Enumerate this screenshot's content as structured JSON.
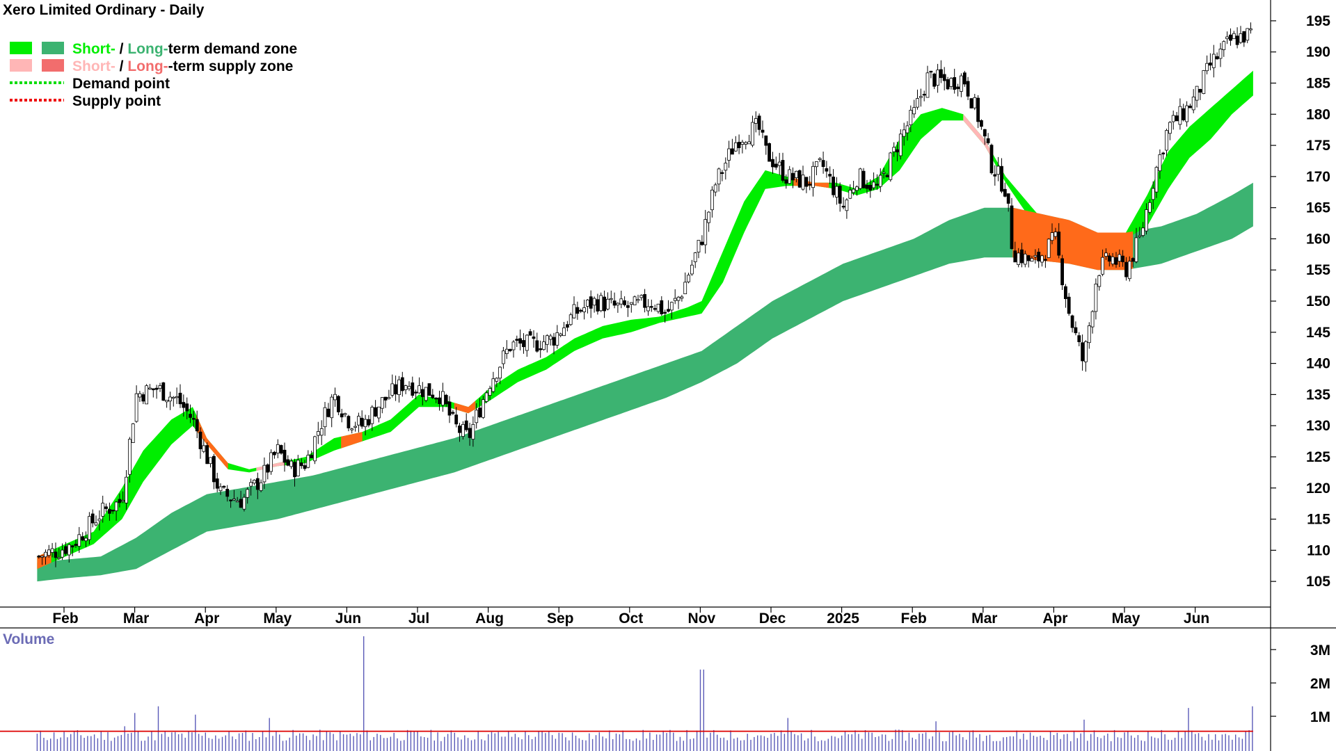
{
  "chart_data": {
    "type": "candlestick",
    "title": "Xero Limited Ordinary - Daily",
    "legend": {
      "placement": "top-left",
      "items": [
        {
          "parts": [
            {
              "text": "Short-",
              "color": "#00ee00"
            },
            {
              "text": " / ",
              "color": "#000000"
            },
            {
              "text": "Long-",
              "color": "#3cb371"
            },
            {
              "text": "term demand zone",
              "color": "#000000"
            }
          ],
          "swatches": [
            "#00ee00",
            "#3cb371"
          ],
          "kind": "box"
        },
        {
          "parts": [
            {
              "text": "Short-",
              "color": "#ffb6b6"
            },
            {
              "text": " / ",
              "color": "#000000"
            },
            {
              "text": "Long-",
              "color": "#f26d6d"
            },
            {
              "text": "-term supply zone",
              "color": "#000000"
            }
          ],
          "swatches": [
            "#ffb6b6",
            "#f26d6d"
          ],
          "kind": "box"
        },
        {
          "parts": [
            {
              "text": "Demand point",
              "color": "#000000"
            }
          ],
          "swatches": [
            "#00dd00"
          ],
          "kind": "dots"
        },
        {
          "parts": [
            {
              "text": "Supply point",
              "color": "#000000"
            }
          ],
          "swatches": [
            "#ee0000"
          ],
          "kind": "dots"
        }
      ]
    },
    "x_labels": [
      "Feb",
      "Mar",
      "Apr",
      "May",
      "Jun",
      "Jul",
      "Aug",
      "Sep",
      "Oct",
      "Nov",
      "Dec",
      "2025",
      "Feb",
      "Mar",
      "Apr",
      "May",
      "Jun"
    ],
    "x_label_month_index": [
      1,
      2,
      3,
      4,
      5,
      6,
      7,
      8,
      9,
      10,
      11,
      12,
      13,
      14,
      15,
      16,
      17
    ],
    "x_range_months": [
      0.6,
      18.4
    ],
    "y_ticks": [
      105,
      110,
      115,
      120,
      125,
      130,
      135,
      140,
      145,
      150,
      155,
      160,
      165,
      170,
      175,
      180,
      185,
      190,
      195
    ],
    "ylim": [
      102,
      197
    ],
    "grid": false,
    "close_path": [
      [
        0.6,
        109
      ],
      [
        0.9,
        110
      ],
      [
        1.1,
        111
      ],
      [
        1.5,
        116
      ],
      [
        1.8,
        118
      ],
      [
        2.0,
        135
      ],
      [
        2.3,
        136
      ],
      [
        2.6,
        134
      ],
      [
        2.8,
        131
      ],
      [
        3.0,
        125
      ],
      [
        3.2,
        119
      ],
      [
        3.5,
        118
      ],
      [
        3.8,
        122
      ],
      [
        4.0,
        126
      ],
      [
        4.2,
        123
      ],
      [
        4.4,
        124
      ],
      [
        4.6,
        130
      ],
      [
        4.8,
        135
      ],
      [
        5.0,
        131
      ],
      [
        5.2,
        130
      ],
      [
        5.4,
        133
      ],
      [
        5.6,
        135
      ],
      [
        5.8,
        137
      ],
      [
        6.0,
        136
      ],
      [
        6.3,
        135
      ],
      [
        6.5,
        130
      ],
      [
        6.7,
        128
      ],
      [
        7.0,
        137
      ],
      [
        7.3,
        143
      ],
      [
        7.6,
        143
      ],
      [
        7.9,
        144
      ],
      [
        8.2,
        148
      ],
      [
        8.5,
        150
      ],
      [
        8.8,
        149
      ],
      [
        9.0,
        149
      ],
      [
        9.3,
        150
      ],
      [
        9.5,
        148
      ],
      [
        9.7,
        151
      ],
      [
        10.0,
        160
      ],
      [
        10.2,
        169
      ],
      [
        10.5,
        176
      ],
      [
        10.8,
        178
      ],
      [
        10.9,
        174
      ],
      [
        11.2,
        170
      ],
      [
        11.5,
        169
      ],
      [
        11.7,
        172
      ],
      [
        12.0,
        165
      ],
      [
        12.2,
        170
      ],
      [
        12.5,
        168
      ],
      [
        12.8,
        176
      ],
      [
        13.0,
        180
      ],
      [
        13.2,
        186
      ],
      [
        13.5,
        185
      ],
      [
        13.7,
        186
      ],
      [
        13.9,
        180
      ],
      [
        14.1,
        172
      ],
      [
        14.3,
        168
      ],
      [
        14.4,
        158
      ],
      [
        14.7,
        156
      ],
      [
        15.0,
        160
      ],
      [
        15.2,
        148
      ],
      [
        15.4,
        140
      ],
      [
        15.6,
        155
      ],
      [
        15.8,
        157
      ],
      [
        16.0,
        155
      ],
      [
        16.2,
        160
      ],
      [
        16.4,
        170
      ],
      [
        16.6,
        178
      ],
      [
        16.8,
        180
      ],
      [
        17.0,
        183
      ],
      [
        17.2,
        188
      ],
      [
        17.5,
        192
      ],
      [
        17.8,
        193
      ]
    ],
    "short_term_zone": {
      "upper": [
        [
          0.6,
          109
        ],
        [
          1.0,
          111
        ],
        [
          1.4,
          113
        ],
        [
          1.8,
          120
        ],
        [
          2.1,
          126
        ],
        [
          2.5,
          131
        ],
        [
          2.8,
          133
        ],
        [
          3.0,
          128
        ],
        [
          3.3,
          124
        ],
        [
          3.6,
          123
        ],
        [
          4.0,
          124
        ],
        [
          4.4,
          125
        ],
        [
          4.8,
          128
        ],
        [
          5.2,
          129
        ],
        [
          5.6,
          131
        ],
        [
          6.0,
          135
        ],
        [
          6.4,
          134
        ],
        [
          6.7,
          133
        ],
        [
          7.0,
          136
        ],
        [
          7.4,
          139
        ],
        [
          7.8,
          141
        ],
        [
          8.2,
          144
        ],
        [
          8.6,
          146
        ],
        [
          9.0,
          147
        ],
        [
          9.4,
          147.5
        ],
        [
          9.8,
          149
        ],
        [
          10.0,
          150
        ],
        [
          10.3,
          158
        ],
        [
          10.6,
          166
        ],
        [
          10.9,
          171
        ],
        [
          11.2,
          170
        ],
        [
          11.6,
          169
        ],
        [
          11.9,
          169
        ],
        [
          12.2,
          168
        ],
        [
          12.5,
          170
        ],
        [
          12.8,
          176
        ],
        [
          13.1,
          180
        ],
        [
          13.4,
          181
        ],
        [
          13.7,
          180
        ],
        [
          14.0,
          176
        ],
        [
          14.3,
          170
        ],
        [
          14.6,
          166
        ],
        [
          14.9,
          162
        ],
        [
          15.2,
          158
        ],
        [
          15.5,
          159
        ],
        [
          15.8,
          160
        ],
        [
          16.0,
          161
        ],
        [
          16.3,
          167
        ],
        [
          16.6,
          174
        ],
        [
          16.9,
          178
        ],
        [
          17.2,
          181
        ],
        [
          17.5,
          184
        ],
        [
          17.8,
          187
        ]
      ],
      "lower": [
        [
          0.6,
          107
        ],
        [
          1.0,
          109
        ],
        [
          1.4,
          111
        ],
        [
          1.8,
          115
        ],
        [
          2.1,
          121
        ],
        [
          2.5,
          127
        ],
        [
          2.8,
          130
        ],
        [
          3.0,
          127
        ],
        [
          3.3,
          123
        ],
        [
          3.6,
          122.5
        ],
        [
          4.0,
          123.5
        ],
        [
          4.4,
          124
        ],
        [
          4.8,
          126
        ],
        [
          5.2,
          127.5
        ],
        [
          5.6,
          129
        ],
        [
          6.0,
          133
        ],
        [
          6.4,
          133
        ],
        [
          6.7,
          132
        ],
        [
          7.0,
          134
        ],
        [
          7.4,
          137
        ],
        [
          7.8,
          139
        ],
        [
          8.2,
          142
        ],
        [
          8.6,
          144
        ],
        [
          9.0,
          145
        ],
        [
          9.4,
          146.5
        ],
        [
          9.8,
          147.5
        ],
        [
          10.0,
          148
        ],
        [
          10.3,
          153
        ],
        [
          10.6,
          161
        ],
        [
          10.9,
          168
        ],
        [
          11.2,
          168.5
        ],
        [
          11.6,
          168.5
        ],
        [
          11.9,
          168
        ],
        [
          12.2,
          167
        ],
        [
          12.5,
          168
        ],
        [
          12.8,
          171
        ],
        [
          13.1,
          176
        ],
        [
          13.4,
          179
        ],
        [
          13.7,
          179
        ],
        [
          14.0,
          175
        ],
        [
          14.3,
          169
        ],
        [
          14.6,
          164
        ],
        [
          14.9,
          160
        ],
        [
          15.2,
          156
        ],
        [
          15.5,
          157
        ],
        [
          15.8,
          158
        ],
        [
          16.0,
          160
        ],
        [
          16.3,
          162
        ],
        [
          16.6,
          168
        ],
        [
          16.9,
          173
        ],
        [
          17.2,
          176
        ],
        [
          17.5,
          180
        ],
        [
          17.8,
          183
        ]
      ]
    },
    "long_term_zone": {
      "upper": [
        [
          0.6,
          108
        ],
        [
          1.0,
          108.5
        ],
        [
          1.5,
          109
        ],
        [
          2.0,
          112
        ],
        [
          2.5,
          116
        ],
        [
          3.0,
          119
        ],
        [
          3.5,
          120
        ],
        [
          4.0,
          121
        ],
        [
          4.5,
          122
        ],
        [
          5.0,
          123.5
        ],
        [
          5.5,
          125
        ],
        [
          6.0,
          126.5
        ],
        [
          6.5,
          128
        ],
        [
          7.0,
          130
        ],
        [
          7.5,
          132
        ],
        [
          8.0,
          134
        ],
        [
          8.5,
          136
        ],
        [
          9.0,
          138
        ],
        [
          9.5,
          140
        ],
        [
          10.0,
          142
        ],
        [
          10.5,
          146
        ],
        [
          11.0,
          150
        ],
        [
          11.5,
          153
        ],
        [
          12.0,
          156
        ],
        [
          12.5,
          158
        ],
        [
          13.0,
          160
        ],
        [
          13.5,
          163
        ],
        [
          14.0,
          165
        ],
        [
          14.4,
          165
        ],
        [
          14.8,
          164
        ],
        [
          15.2,
          163
        ],
        [
          15.6,
          161
        ],
        [
          16.0,
          161
        ],
        [
          16.5,
          162
        ],
        [
          17.0,
          164
        ],
        [
          17.5,
          167
        ],
        [
          17.8,
          169
        ]
      ],
      "lower": [
        [
          0.6,
          105
        ],
        [
          1.0,
          105.5
        ],
        [
          1.5,
          106
        ],
        [
          2.0,
          107
        ],
        [
          2.5,
          110
        ],
        [
          3.0,
          113
        ],
        [
          3.5,
          114
        ],
        [
          4.0,
          115
        ],
        [
          4.5,
          116.5
        ],
        [
          5.0,
          118
        ],
        [
          5.5,
          119.5
        ],
        [
          6.0,
          121
        ],
        [
          6.5,
          122.5
        ],
        [
          7.0,
          124.5
        ],
        [
          7.5,
          126.5
        ],
        [
          8.0,
          128.5
        ],
        [
          8.5,
          130.5
        ],
        [
          9.0,
          132.5
        ],
        [
          9.5,
          134.5
        ],
        [
          10.0,
          137
        ],
        [
          10.5,
          140
        ],
        [
          11.0,
          144
        ],
        [
          11.5,
          147
        ],
        [
          12.0,
          150
        ],
        [
          12.5,
          152
        ],
        [
          13.0,
          154
        ],
        [
          13.5,
          156
        ],
        [
          14.0,
          157
        ],
        [
          14.4,
          157
        ],
        [
          14.8,
          156.5
        ],
        [
          15.2,
          156
        ],
        [
          15.6,
          155
        ],
        [
          16.0,
          155
        ],
        [
          16.5,
          156
        ],
        [
          17.0,
          158
        ],
        [
          17.5,
          160
        ],
        [
          17.8,
          162
        ]
      ]
    },
    "supply_segments": [
      [
        0.6,
        0.8
      ],
      [
        2.85,
        3.3
      ],
      [
        3.7,
        4.1
      ],
      [
        4.9,
        5.2
      ],
      [
        6.5,
        6.8
      ],
      [
        11.3,
        11.8
      ],
      [
        13.7,
        14.1
      ],
      [
        14.4,
        16.1
      ]
    ],
    "supply_colors": {
      "light": "#ffb6b6",
      "strong": "#ff6a1a"
    },
    "volume": {
      "title": "Volume",
      "y_ticks": [
        "1M",
        "2M",
        "3M"
      ],
      "y_tick_values": [
        1,
        2,
        3
      ],
      "ylim": [
        0,
        3.4
      ],
      "bar_color": "#5a5ab8",
      "average_color": "#dd0000",
      "average_level": 0.55,
      "spikes": [
        [
          1.85,
          0.7
        ],
        [
          2.0,
          1.1
        ],
        [
          2.3,
          1.3
        ],
        [
          2.85,
          1.05
        ],
        [
          5.2,
          3.4
        ],
        [
          10.0,
          2.4
        ],
        [
          5.2,
          3.4
        ],
        [
          11.2,
          0.95
        ],
        [
          13.3,
          0.85
        ],
        [
          16.9,
          1.25
        ],
        [
          17.8,
          1.3
        ],
        [
          15.4,
          0.9
        ],
        [
          3.9,
          0.95
        ]
      ]
    }
  }
}
